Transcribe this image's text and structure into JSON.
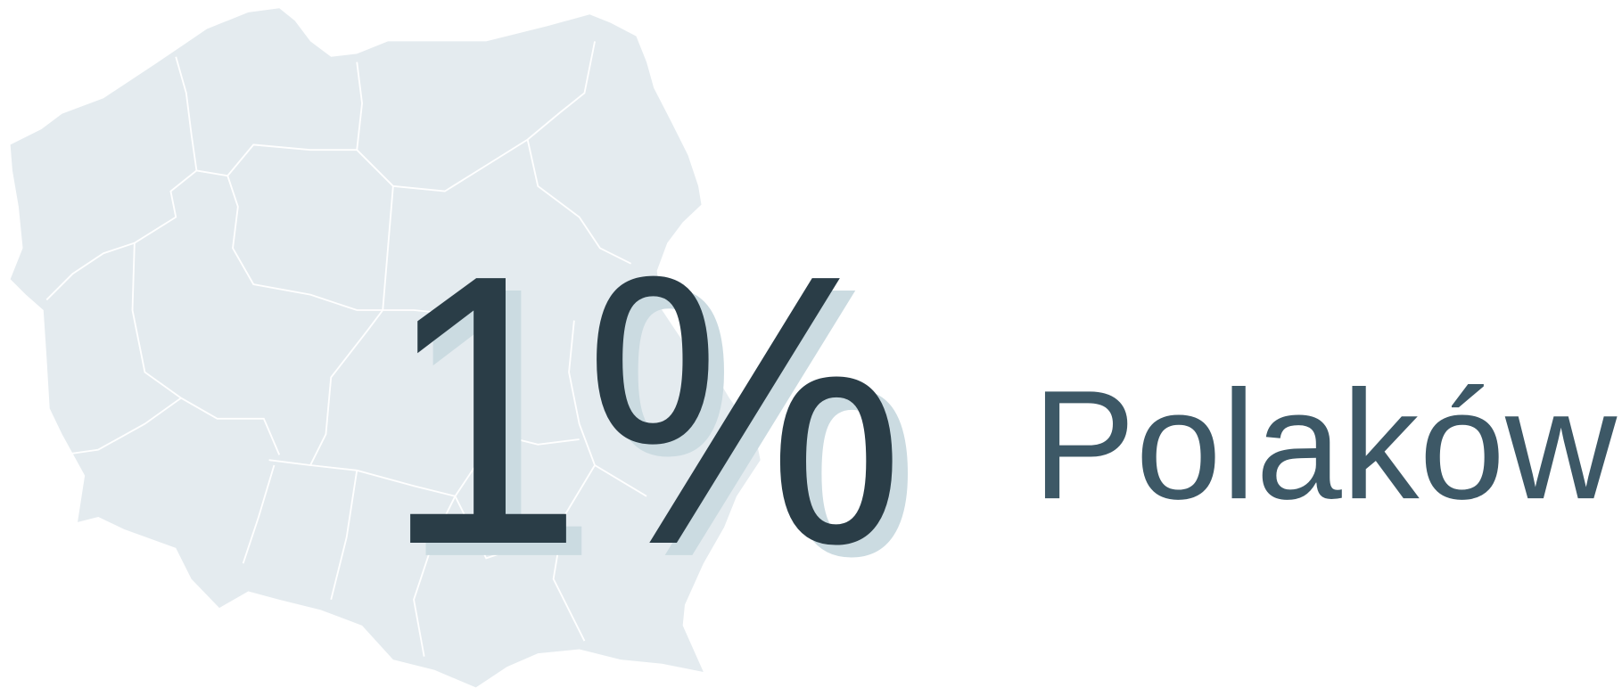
{
  "stat": {
    "value": "1%",
    "label": "Polaków"
  }
}
